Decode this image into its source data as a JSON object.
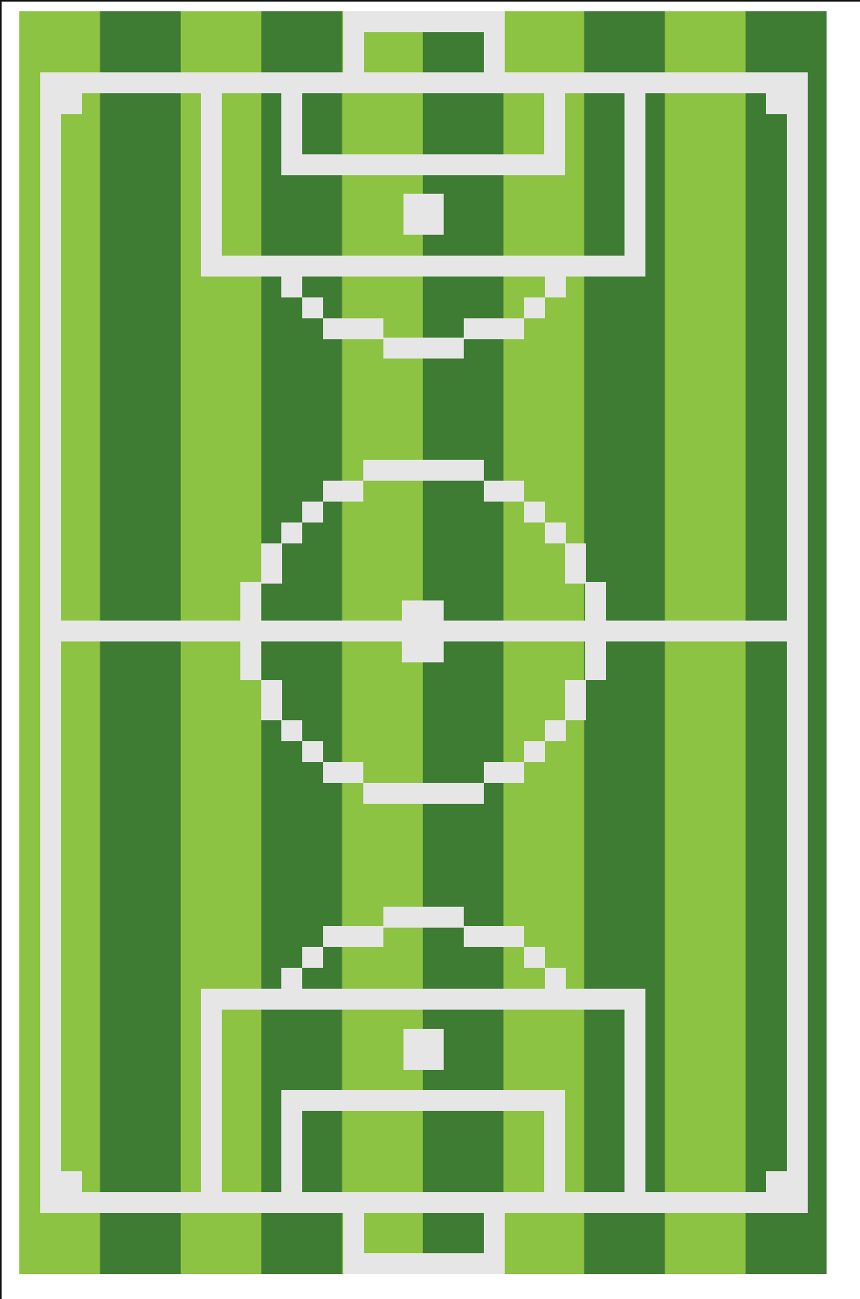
{
  "scene": {
    "subject": "pixel-art-soccer-field",
    "orientation": "vertical",
    "colors": {
      "background": "#ffffff",
      "grass_light": "#8dc342",
      "grass_dark": "#3e7b33",
      "lines": "#e6e6e6",
      "frame": "#111111"
    },
    "stripe_count": 10
  }
}
